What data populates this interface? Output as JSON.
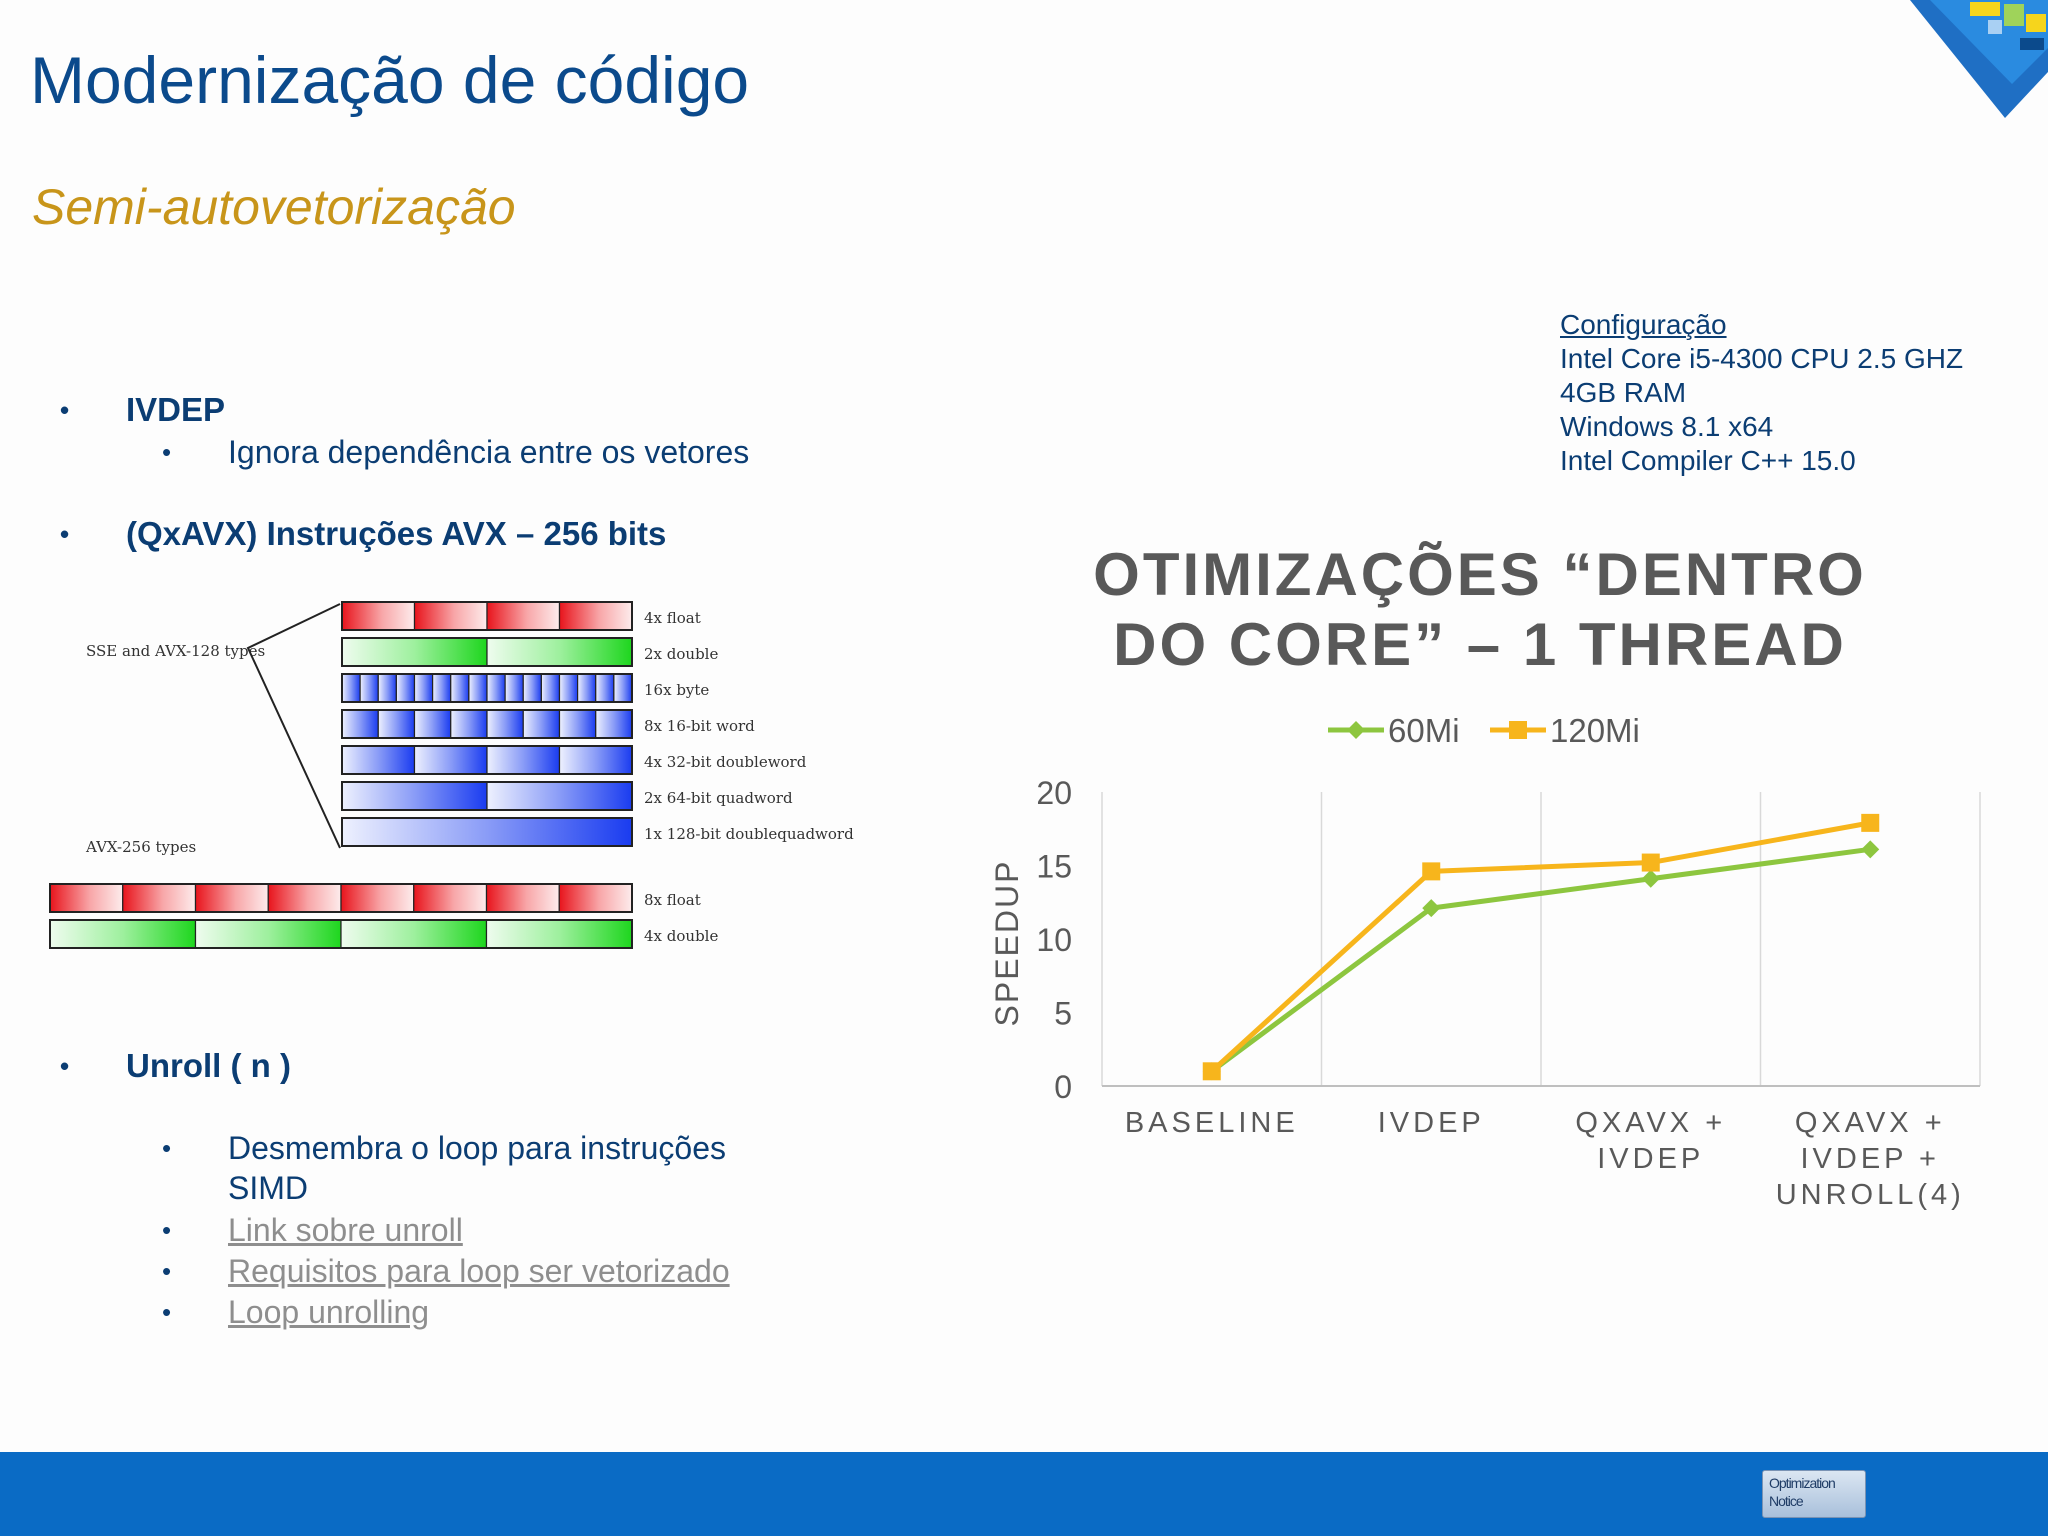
{
  "slide": {
    "title": "Modernização de código",
    "subtitle": "Semi-autovetorização"
  },
  "bullets": {
    "ivdep": "IVDEP",
    "ivdep_sub": "Ignora dependência entre os vetores",
    "qxavx": "(QxAVX) Instruções AVX – 256 bits",
    "unroll": "Unroll ( n )",
    "unroll_sub_1": "Desmembra o loop para instruções",
    "unroll_sub_2": "SIMD",
    "link_1": "Link sobre unroll",
    "link_2": "Requisitos para loop ser vetorizado",
    "link_3": "Loop unrolling"
  },
  "config": {
    "heading": "Configuração",
    "lines": [
      "Intel Core i5-4300 CPU 2.5 GHZ",
      "4GB RAM",
      "Windows 8.1 x64",
      "Intel Compiler C++ 15.0"
    ]
  },
  "diagram": {
    "group_sse": "SSE and AVX-128 types",
    "group_avx": "AVX-256 types",
    "rows_128": [
      "4x float",
      "2x double",
      "16x byte",
      "8x 16-bit word",
      "4x 32-bit doubleword",
      "2x 64-bit quadword",
      "1x 128-bit doublequadword"
    ],
    "rows_256": [
      "8x float",
      "4x double"
    ],
    "colors": {
      "float": "#e8141c",
      "double": "#1ed61e",
      "integer": "#1a3cf0"
    }
  },
  "chart_data": {
    "type": "line",
    "title": "OTIMIZAÇÕES “DENTRO DO CORE” – 1 THREAD",
    "title_line_1": "OTIMIZAÇÕES “DENTRO",
    "title_line_2": "DO CORE” – 1 THREAD",
    "ylabel": "SPEEDUP",
    "ylim": [
      0,
      20
    ],
    "yticks": [
      "0",
      "5",
      "10",
      "15",
      "20"
    ],
    "categories": [
      [
        "BASELINE"
      ],
      [
        "IVDEP"
      ],
      [
        "QXAVX +",
        "IVDEP"
      ],
      [
        "QXAVX +",
        "IVDEP +",
        "UNROLL(4)"
      ]
    ],
    "series": [
      {
        "name": "60Mi",
        "values": [
          1,
          12.1,
          14.1,
          16.1
        ],
        "color": "#8dc63f",
        "marker": "diamond"
      },
      {
        "name": "120Mi",
        "values": [
          1,
          14.6,
          15.2,
          17.9
        ],
        "color": "#f7b51c",
        "marker": "square"
      }
    ],
    "legend": "top",
    "grid": "vertical"
  },
  "footer": {
    "notice_line_1": "Optimization",
    "notice_line_2": "Notice",
    "color": "#0a6bc5"
  }
}
